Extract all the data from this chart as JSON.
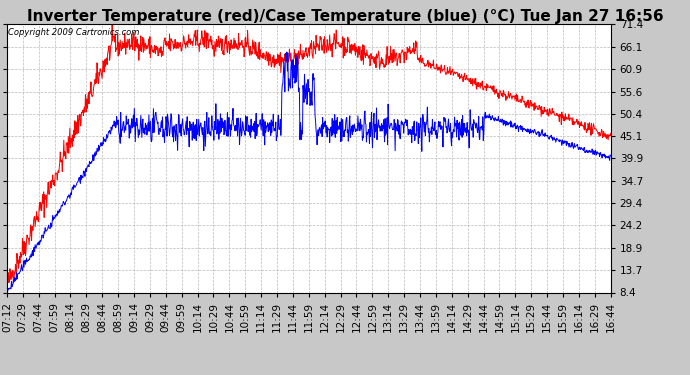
{
  "title": "Inverter Temperature (red)/Case Temperature (blue) (°C) Tue Jan 27 16:56",
  "copyright_text": "Copyright 2009 Cartronics.com",
  "y_ticks": [
    8.4,
    13.7,
    18.9,
    24.2,
    29.4,
    34.7,
    39.9,
    45.1,
    50.4,
    55.6,
    60.9,
    66.1,
    71.4
  ],
  "ymin": 8.4,
  "ymax": 71.4,
  "x_labels": [
    "07:12",
    "07:29",
    "07:44",
    "07:59",
    "08:14",
    "08:29",
    "08:44",
    "08:59",
    "09:14",
    "09:29",
    "09:44",
    "09:59",
    "10:14",
    "10:29",
    "10:44",
    "10:59",
    "11:14",
    "11:29",
    "11:44",
    "11:59",
    "12:14",
    "12:29",
    "12:44",
    "12:59",
    "13:14",
    "13:29",
    "13:44",
    "13:59",
    "14:14",
    "14:29",
    "14:44",
    "14:59",
    "15:14",
    "15:29",
    "15:44",
    "15:59",
    "16:14",
    "16:29",
    "16:44"
  ],
  "bg_color": "#c8c8c8",
  "plot_bg_color": "#ffffff",
  "grid_color": "#aaaaaa",
  "red_color": "#ff0000",
  "blue_color": "#0000ff",
  "title_fontsize": 11,
  "tick_fontsize": 7.5
}
